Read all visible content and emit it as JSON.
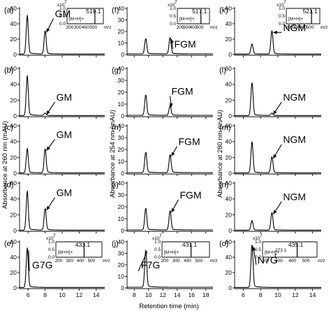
{
  "chart_data": [
    {
      "type": "line",
      "panel": "(a)",
      "annotation": "GM",
      "ylim": [
        0,
        60
      ],
      "yticks": [
        0,
        20,
        40,
        60
      ],
      "xlim": [
        5,
        15
      ],
      "xticks": [
        6,
        8,
        10,
        12,
        14
      ],
      "peaks": [
        {
          "x": 5.9,
          "y": 49
        },
        {
          "x": 8.0,
          "y": 30
        }
      ],
      "inset": {
        "exponent": "7",
        "scale_label": "x10",
        "yticks": [
          "0.0",
          "0.5",
          "1.0"
        ],
        "xticks": [
          "200",
          "300",
          "400",
          "500"
        ],
        "xunit": "m/z",
        "peak_label": "519.1",
        "peak_mz": 519.1,
        "ion": "[M+H]+"
      }
    },
    {
      "type": "line",
      "panel": "(b)",
      "annotation": "GM",
      "ylim": [
        0,
        60
      ],
      "yticks": [
        0,
        20,
        40,
        60
      ],
      "xlim": [
        5,
        15
      ],
      "xticks": [
        6,
        8,
        10,
        12,
        14
      ],
      "peaks": [
        {
          "x": 5.9,
          "y": 49
        },
        {
          "x": 8.0,
          "y": 3
        }
      ]
    },
    {
      "type": "line",
      "panel": "(c)",
      "annotation": "GM",
      "ylim": [
        0,
        60
      ],
      "yticks": [
        0,
        20,
        40,
        60
      ],
      "xlim": [
        5,
        15
      ],
      "xticks": [
        6,
        8,
        10,
        12,
        14
      ],
      "peaks": [
        {
          "x": 5.9,
          "y": 30
        },
        {
          "x": 8.0,
          "y": 30
        }
      ]
    },
    {
      "type": "line",
      "panel": "(d)",
      "annotation": "GM",
      "ylim": [
        0,
        60
      ],
      "yticks": [
        0,
        20,
        40,
        60
      ],
      "xlim": [
        5,
        15
      ],
      "xticks": [
        6,
        8,
        10,
        12,
        14
      ],
      "peaks": [
        {
          "x": 5.9,
          "y": 48
        },
        {
          "x": 8.0,
          "y": 27
        }
      ]
    },
    {
      "type": "line",
      "panel": "(e)",
      "annotation": "G7G",
      "ylim": [
        0,
        60
      ],
      "yticks": [
        0,
        20,
        40,
        60
      ],
      "xlim": [
        5,
        15
      ],
      "xticks": [
        6,
        8,
        10,
        12,
        14
      ],
      "xticklabels": [
        "6",
        "8",
        "10",
        "12",
        "14"
      ],
      "peaks": [
        {
          "x": 5.9,
          "y": 50
        }
      ],
      "inset": {
        "exponent": "7",
        "scale_label": "x10",
        "yticks": [
          "0.0",
          "0.5",
          "1.0"
        ],
        "xticks": [
          "200",
          "300",
          "400",
          "500"
        ],
        "xunit": "m/z",
        "peak_label": "433.1",
        "peak_mz": 433.1,
        "ion": "[M+H]+"
      }
    },
    {
      "type": "line",
      "panel": "(f)",
      "annotation": "FGM",
      "ylim": [
        0,
        40
      ],
      "yticks": [
        0,
        10,
        20,
        30,
        40
      ],
      "xlim": [
        7,
        19
      ],
      "xticks": [
        8,
        10,
        12,
        14,
        16,
        18
      ],
      "peaks": [
        {
          "x": 9.6,
          "y": 13
        },
        {
          "x": 13.0,
          "y": 14
        }
      ],
      "inset": {
        "exponent": "7",
        "scale_label": "x10",
        "yticks": [
          "0.0",
          "0.5",
          "1.0"
        ],
        "xticks": [
          "200",
          "300",
          "400",
          "500"
        ],
        "xunit": "m/z",
        "peak_label": "517.1",
        "peak_mz": 517.1,
        "ion": "[M+H]+"
      }
    },
    {
      "type": "line",
      "panel": "(g)",
      "annotation": "FGM",
      "ylim": [
        0,
        40
      ],
      "yticks": [
        0,
        10,
        20,
        30,
        40
      ],
      "xlim": [
        7,
        19
      ],
      "xticks": [
        8,
        10,
        12,
        14,
        16,
        18
      ],
      "peaks": [
        {
          "x": 9.6,
          "y": 17
        },
        {
          "x": 13.0,
          "y": 8
        }
      ]
    },
    {
      "type": "line",
      "panel": "(h)",
      "annotation": "FGM",
      "ylim": [
        0,
        40
      ],
      "yticks": [
        0,
        10,
        20,
        30,
        40
      ],
      "xlim": [
        7,
        19
      ],
      "xticks": [
        8,
        10,
        12,
        14,
        16,
        18
      ],
      "peaks": [
        {
          "x": 9.6,
          "y": 17
        },
        {
          "x": 13.0,
          "y": 15
        }
      ]
    },
    {
      "type": "line",
      "panel": "(i)",
      "annotation": "FGM",
      "ylim": [
        0,
        40
      ],
      "yticks": [
        0,
        10,
        20,
        30,
        40
      ],
      "xlim": [
        7,
        19
      ],
      "xticks": [
        8,
        10,
        12,
        14,
        16,
        18
      ],
      "peaks": [
        {
          "x": 9.6,
          "y": 18
        },
        {
          "x": 13.0,
          "y": 16
        }
      ]
    },
    {
      "type": "line",
      "panel": "(j)",
      "annotation": "F7G",
      "ylim": [
        0,
        40
      ],
      "yticks": [
        0,
        10,
        20,
        30,
        40
      ],
      "xlim": [
        7,
        19
      ],
      "xticks": [
        8,
        10,
        12,
        14,
        16,
        18
      ],
      "xticklabels": [
        "8",
        "10",
        "12",
        "14",
        "16",
        "18"
      ],
      "peaks": [
        {
          "x": 9.6,
          "y": 32
        }
      ],
      "inset": {
        "exponent": "7",
        "scale_label": "x10",
        "yticks": [
          "0.0",
          "0.5",
          "1.0"
        ],
        "xticks": [
          "200",
          "300",
          "400",
          "500"
        ],
        "xunit": "m/z",
        "peak_label": "431.1",
        "peak_mz": 431.1,
        "ion": "[M+H]+"
      }
    },
    {
      "type": "line",
      "panel": "(k)",
      "annotation": "NGM",
      "ylim": [
        0,
        60
      ],
      "yticks": [
        0,
        20,
        40,
        60
      ],
      "xlim": [
        5,
        15
      ],
      "xticks": [
        6,
        8,
        10,
        12,
        14
      ],
      "peaks": [
        {
          "x": 7.0,
          "y": 13
        },
        {
          "x": 9.3,
          "y": 30
        }
      ],
      "inset": {
        "exponent": "7",
        "scale_label": "x10",
        "yticks": [
          "0.0",
          "0.5",
          "1.0"
        ],
        "xticks": [
          "200",
          "300",
          "400",
          "500"
        ],
        "xunit": "m/z",
        "peak_label": "521.1",
        "peak_mz": 521.1,
        "ion": "[M+H]+"
      }
    },
    {
      "type": "line",
      "panel": "(l)",
      "annotation": "NGM",
      "ylim": [
        0,
        60
      ],
      "yticks": [
        0,
        20,
        40,
        60
      ],
      "xlim": [
        5,
        15
      ],
      "xticks": [
        6,
        8,
        10,
        12,
        14
      ],
      "peaks": [
        {
          "x": 7.0,
          "y": 41
        },
        {
          "x": 9.3,
          "y": 3
        }
      ]
    },
    {
      "type": "line",
      "panel": "(m)",
      "annotation": "NGM",
      "ylim": [
        0,
        60
      ],
      "yticks": [
        0,
        20,
        40,
        60
      ],
      "xlim": [
        5,
        15
      ],
      "xticks": [
        6,
        8,
        10,
        12,
        14
      ],
      "peaks": [
        {
          "x": 7.0,
          "y": 39
        },
        {
          "x": 9.3,
          "y": 20
        }
      ]
    },
    {
      "type": "line",
      "panel": "(n)",
      "annotation": "NGM",
      "ylim": [
        0,
        60
      ],
      "yticks": [
        0,
        20,
        40,
        60
      ],
      "xlim": [
        5,
        15
      ],
      "xticks": [
        6,
        8,
        10,
        12,
        14
      ],
      "peaks": [
        {
          "x": 7.0,
          "y": 12
        },
        {
          "x": 9.3,
          "y": 22
        }
      ]
    },
    {
      "type": "line",
      "panel": "(o)",
      "annotation": "N7G",
      "ylim": [
        0,
        60
      ],
      "yticks": [
        0,
        20,
        40,
        60
      ],
      "xlim": [
        5,
        15
      ],
      "xticks": [
        6,
        8,
        10,
        12,
        14
      ],
      "xticklabels": [
        "6",
        "8",
        "10",
        "12",
        "14"
      ],
      "peaks": [
        {
          "x": 7.0,
          "y": 55
        }
      ],
      "inset": {
        "exponent": "7",
        "scale_label": "x10",
        "yticks": [
          "0.0",
          "0.5",
          "1.0"
        ],
        "xticks": [
          "200",
          "300",
          "400",
          "500"
        ],
        "xunit": "m/z",
        "peak_label": "435.1",
        "peak_mz": 435.1,
        "ion": "[M+H]+",
        "minor_label": "273.1",
        "minor_mz": 273.1
      }
    }
  ],
  "ylabels": {
    "left": "Absorbance at 260 nm (mAU)",
    "middle": "Absorbance at 254 nm (mAU)",
    "right": "Absorbance at 280 nm (mAU)"
  },
  "xlabel": "Retention time (min)"
}
